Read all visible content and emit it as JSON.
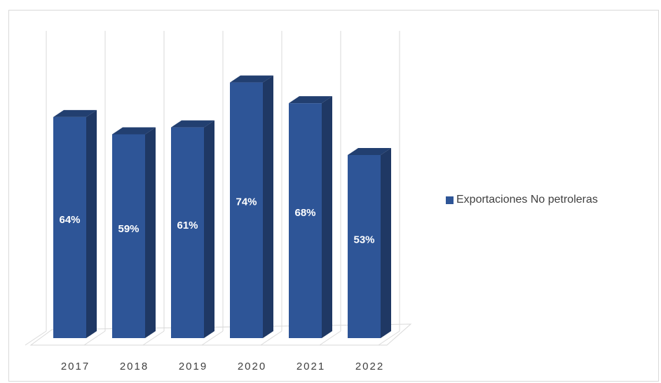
{
  "chart_data": {
    "type": "bar",
    "categories": [
      "2017",
      "2018",
      "2019",
      "2020",
      "2021",
      "2022"
    ],
    "series": [
      {
        "name": "Exportaciones No petroleras",
        "values": [
          64,
          59,
          61,
          74,
          68,
          53
        ],
        "labels": [
          "64%",
          "59%",
          "61%",
          "74%",
          "68%",
          "53%"
        ]
      }
    ],
    "title": "",
    "xlabel": "",
    "ylabel": "",
    "ylim": [
      0,
      80
    ],
    "grid": "vertical",
    "legend_position": "right",
    "colors": {
      "front": "#2e5597",
      "side": "#1f3864",
      "top": "#223f70",
      "grid": "#d9d9d9"
    }
  }
}
